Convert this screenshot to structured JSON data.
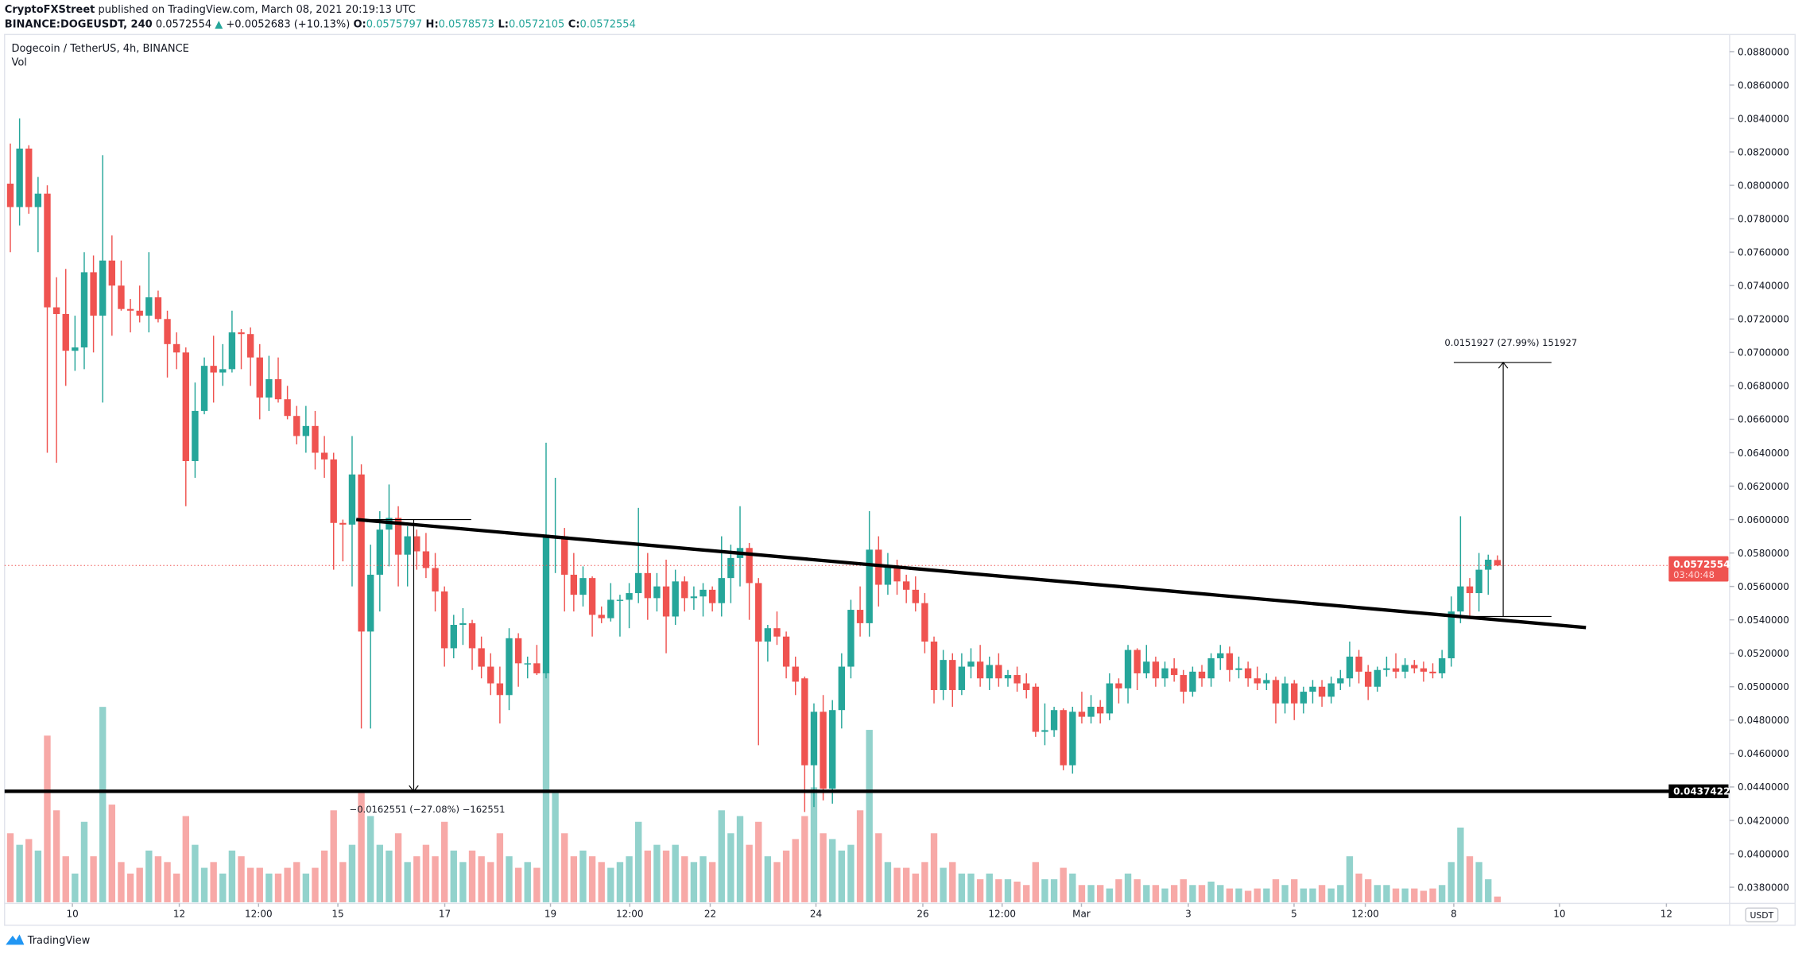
{
  "header": {
    "author": "CryptoFXStreet",
    "published": " published on TradingView.com, March 08, 2021 20:19:13 UTC",
    "symbol": "BINANCE:DOGEUSDT, 240",
    "last": " 0.0572554 ",
    "arrow": "▲",
    "change": " +0.0052683 (+10.13%) ",
    "o_label": "O:",
    "o": "0.0575797",
    "h_label": " H:",
    "h": "0.0578573",
    "l_label": " L:",
    "l": "0.0572105",
    "c_label": " C:",
    "c": "0.0572554"
  },
  "legend": {
    "title": "Dogecoin / TetherUS, 4h, BINANCE",
    "vol": "Vol"
  },
  "currency_badge": "USDT",
  "current_price": {
    "value": "0.0572554",
    "countdown": "03:40:48",
    "price": 0.0572554
  },
  "support": {
    "label": "0.0437422",
    "price": 0.0437422
  },
  "measure_down": {
    "label": "−0.0162551 (−27.08%) −162551",
    "from": 0.06,
    "to": 0.0437422
  },
  "measure_up": {
    "label": "0.0151927 (27.99%) 151927",
    "from": 0.0542,
    "to": 0.0694
  },
  "footer": {
    "brand": "TradingView"
  },
  "colors": {
    "up": "#26a69a",
    "down": "#ef5350",
    "vol_up": "#92d2cc",
    "vol_down": "#f7a9a7",
    "line": "#000000"
  },
  "chart_data": {
    "type": "candlestick",
    "yaxis": {
      "min": 0.038,
      "max": 0.088,
      "step": 0.002,
      "side": "right",
      "ticks": [
        "0.0880000",
        "0.0860000",
        "0.0840000",
        "0.0820000",
        "0.0800000",
        "0.0780000",
        "0.0760000",
        "0.0740000",
        "0.0720000",
        "0.0700000",
        "0.0680000",
        "0.0660000",
        "0.0640000",
        "0.0620000",
        "0.0600000",
        "0.0580000",
        "0.0560000",
        "0.0540000",
        "0.0520000",
        "0.0500000",
        "0.0480000",
        "0.0460000",
        "0.0440000",
        "0.0420000",
        "0.0400000",
        "0.0380000"
      ]
    },
    "xaxis": {
      "ticks": [
        "10",
        "12",
        "12:00",
        "15",
        "17",
        "19",
        "12:00",
        "22",
        "24",
        "26",
        "12:00",
        "Mar",
        "3",
        "5",
        "12:00",
        "8",
        "10",
        "12"
      ]
    },
    "grid": false,
    "candles_ohlc": [
      [
        0.0801,
        0.0825,
        0.076,
        0.0787
      ],
      [
        0.0787,
        0.084,
        0.0776,
        0.0822
      ],
      [
        0.0822,
        0.0824,
        0.0783,
        0.0787
      ],
      [
        0.0787,
        0.0805,
        0.076,
        0.0795
      ],
      [
        0.0795,
        0.08,
        0.064,
        0.0727
      ],
      [
        0.0727,
        0.0745,
        0.0634,
        0.0723
      ],
      [
        0.0723,
        0.075,
        0.068,
        0.0701
      ],
      [
        0.0701,
        0.0722,
        0.0689,
        0.0703
      ],
      [
        0.0703,
        0.076,
        0.069,
        0.0748
      ],
      [
        0.0748,
        0.0758,
        0.07,
        0.0722
      ],
      [
        0.0722,
        0.0818,
        0.067,
        0.0755
      ],
      [
        0.0755,
        0.077,
        0.071,
        0.074
      ],
      [
        0.074,
        0.0755,
        0.0725,
        0.0726
      ],
      [
        0.0726,
        0.0732,
        0.0712,
        0.0725
      ],
      [
        0.0725,
        0.074,
        0.0718,
        0.0722
      ],
      [
        0.0722,
        0.076,
        0.0712,
        0.0733
      ],
      [
        0.0733,
        0.0737,
        0.0718,
        0.072
      ],
      [
        0.072,
        0.0725,
        0.0685,
        0.0705
      ],
      [
        0.0705,
        0.0712,
        0.069,
        0.07
      ],
      [
        0.07,
        0.0703,
        0.0608,
        0.0635
      ],
      [
        0.0635,
        0.0682,
        0.0625,
        0.0665
      ],
      [
        0.0665,
        0.0697,
        0.0663,
        0.0692
      ],
      [
        0.0692,
        0.071,
        0.067,
        0.0688
      ],
      [
        0.0688,
        0.0705,
        0.068,
        0.069
      ],
      [
        0.069,
        0.0725,
        0.0688,
        0.0712
      ],
      [
        0.0712,
        0.0714,
        0.069,
        0.0711
      ],
      [
        0.0711,
        0.0715,
        0.068,
        0.0697
      ],
      [
        0.0697,
        0.0705,
        0.066,
        0.0673
      ],
      [
        0.0673,
        0.0698,
        0.0665,
        0.0684
      ],
      [
        0.0684,
        0.0697,
        0.067,
        0.0672
      ],
      [
        0.0672,
        0.068,
        0.066,
        0.0662
      ],
      [
        0.0662,
        0.0668,
        0.0645,
        0.065
      ],
      [
        0.065,
        0.0668,
        0.064,
        0.0656
      ],
      [
        0.0656,
        0.0665,
        0.063,
        0.064
      ],
      [
        0.064,
        0.065,
        0.0625,
        0.0636
      ],
      [
        0.0636,
        0.064,
        0.057,
        0.0598
      ],
      [
        0.0598,
        0.06,
        0.0575,
        0.0597
      ],
      [
        0.0597,
        0.065,
        0.056,
        0.0627
      ],
      [
        0.0627,
        0.0633,
        0.0475,
        0.0533
      ],
      [
        0.0533,
        0.0585,
        0.0475,
        0.0567
      ],
      [
        0.0567,
        0.0605,
        0.0545,
        0.0594
      ],
      [
        0.0594,
        0.0621,
        0.0572,
        0.0601
      ],
      [
        0.0601,
        0.0608,
        0.056,
        0.0579
      ],
      [
        0.0579,
        0.0596,
        0.056,
        0.059
      ],
      [
        0.059,
        0.0594,
        0.057,
        0.0581
      ],
      [
        0.0581,
        0.0592,
        0.0565,
        0.0571
      ],
      [
        0.0571,
        0.058,
        0.0545,
        0.0557
      ],
      [
        0.0557,
        0.056,
        0.0512,
        0.0523
      ],
      [
        0.0523,
        0.0543,
        0.0517,
        0.0537
      ],
      [
        0.0537,
        0.0547,
        0.0525,
        0.0538
      ],
      [
        0.0538,
        0.054,
        0.051,
        0.0523
      ],
      [
        0.0523,
        0.053,
        0.0505,
        0.0512
      ],
      [
        0.0512,
        0.052,
        0.0495,
        0.0502
      ],
      [
        0.0502,
        0.0512,
        0.0478,
        0.0495
      ],
      [
        0.0495,
        0.0535,
        0.0486,
        0.0529
      ],
      [
        0.0529,
        0.0532,
        0.05,
        0.0514
      ],
      [
        0.0514,
        0.0518,
        0.0505,
        0.0514
      ],
      [
        0.0514,
        0.0525,
        0.0507,
        0.0508
      ],
      [
        0.0508,
        0.0646,
        0.0505,
        0.0591
      ],
      [
        0.0589,
        0.0625,
        0.0568,
        0.059
      ],
      [
        0.059,
        0.0595,
        0.0545,
        0.0567
      ],
      [
        0.0567,
        0.058,
        0.0545,
        0.0555
      ],
      [
        0.0555,
        0.0572,
        0.0548,
        0.0565
      ],
      [
        0.0565,
        0.0566,
        0.053,
        0.0543
      ],
      [
        0.0543,
        0.0548,
        0.0538,
        0.0541
      ],
      [
        0.0541,
        0.0562,
        0.0539,
        0.0552
      ],
      [
        0.0552,
        0.0555,
        0.053,
        0.0552
      ],
      [
        0.0552,
        0.0562,
        0.0535,
        0.0556
      ],
      [
        0.0556,
        0.0607,
        0.055,
        0.0568
      ],
      [
        0.0568,
        0.058,
        0.054,
        0.0553
      ],
      [
        0.0553,
        0.0568,
        0.0545,
        0.056
      ],
      [
        0.056,
        0.0576,
        0.052,
        0.0542
      ],
      [
        0.0542,
        0.057,
        0.0537,
        0.0563
      ],
      [
        0.0563,
        0.0566,
        0.0545,
        0.0553
      ],
      [
        0.0553,
        0.056,
        0.0546,
        0.0554
      ],
      [
        0.0554,
        0.0562,
        0.0542,
        0.0558
      ],
      [
        0.0558,
        0.056,
        0.0545,
        0.055
      ],
      [
        0.055,
        0.059,
        0.0542,
        0.0565
      ],
      [
        0.0565,
        0.0585,
        0.055,
        0.0577
      ],
      [
        0.0577,
        0.0608,
        0.056,
        0.0583
      ],
      [
        0.0583,
        0.0586,
        0.054,
        0.0562
      ],
      [
        0.0562,
        0.0565,
        0.0465,
        0.0527
      ],
      [
        0.0527,
        0.0537,
        0.0515,
        0.0535
      ],
      [
        0.0535,
        0.0545,
        0.0525,
        0.053
      ],
      [
        0.053,
        0.0533,
        0.0505,
        0.0512
      ],
      [
        0.0512,
        0.0518,
        0.0495,
        0.0503
      ],
      [
        0.0505,
        0.0506,
        0.0425,
        0.0453
      ],
      [
        0.0453,
        0.049,
        0.0428,
        0.0485
      ],
      [
        0.0485,
        0.0495,
        0.0432,
        0.0439
      ],
      [
        0.0439,
        0.0492,
        0.043,
        0.0486
      ],
      [
        0.0486,
        0.052,
        0.0475,
        0.0512
      ],
      [
        0.0512,
        0.0552,
        0.0505,
        0.0546
      ],
      [
        0.0546,
        0.056,
        0.053,
        0.0538
      ],
      [
        0.0538,
        0.0605,
        0.053,
        0.0582
      ],
      [
        0.0582,
        0.059,
        0.0548,
        0.0561
      ],
      [
        0.0561,
        0.058,
        0.0555,
        0.0572
      ],
      [
        0.0572,
        0.0576,
        0.0555,
        0.0563
      ],
      [
        0.0563,
        0.0567,
        0.055,
        0.0558
      ],
      [
        0.0558,
        0.0566,
        0.0545,
        0.055
      ],
      [
        0.055,
        0.0556,
        0.052,
        0.0527
      ],
      [
        0.0527,
        0.053,
        0.049,
        0.0498
      ],
      [
        0.0498,
        0.0522,
        0.0492,
        0.0516
      ],
      [
        0.0516,
        0.052,
        0.0488,
        0.0498
      ],
      [
        0.0498,
        0.052,
        0.0495,
        0.0512
      ],
      [
        0.0512,
        0.0523,
        0.0505,
        0.0515
      ],
      [
        0.0515,
        0.0525,
        0.05,
        0.0505
      ],
      [
        0.0505,
        0.0518,
        0.0498,
        0.0513
      ],
      [
        0.0513,
        0.052,
        0.05,
        0.0505
      ],
      [
        0.0505,
        0.051,
        0.05,
        0.0507
      ],
      [
        0.0507,
        0.0512,
        0.0497,
        0.0502
      ],
      [
        0.0502,
        0.0508,
        0.0493,
        0.0498
      ],
      [
        0.05,
        0.0502,
        0.047,
        0.0473
      ],
      [
        0.0473,
        0.049,
        0.0465,
        0.0474
      ],
      [
        0.0474,
        0.0488,
        0.047,
        0.0486
      ],
      [
        0.0486,
        0.0487,
        0.045,
        0.0453
      ],
      [
        0.0453,
        0.0488,
        0.0448,
        0.0485
      ],
      [
        0.0485,
        0.0497,
        0.0478,
        0.0482
      ],
      [
        0.0482,
        0.0495,
        0.0478,
        0.0488
      ],
      [
        0.0488,
        0.0492,
        0.0478,
        0.0484
      ],
      [
        0.0484,
        0.0508,
        0.048,
        0.0502
      ],
      [
        0.0502,
        0.0505,
        0.049,
        0.0499
      ],
      [
        0.0499,
        0.0525,
        0.049,
        0.0522
      ],
      [
        0.0522,
        0.0523,
        0.0498,
        0.0508
      ],
      [
        0.0508,
        0.0525,
        0.0505,
        0.0515
      ],
      [
        0.0515,
        0.0518,
        0.05,
        0.0505
      ],
      [
        0.0505,
        0.0515,
        0.05,
        0.0511
      ],
      [
        0.0511,
        0.0517,
        0.0503,
        0.0507
      ],
      [
        0.0507,
        0.051,
        0.049,
        0.0497
      ],
      [
        0.0497,
        0.0512,
        0.0494,
        0.0509
      ],
      [
        0.0509,
        0.0513,
        0.05,
        0.0505
      ],
      [
        0.0505,
        0.052,
        0.05,
        0.0517
      ],
      [
        0.0517,
        0.0525,
        0.051,
        0.052
      ],
      [
        0.052,
        0.0524,
        0.0503,
        0.051
      ],
      [
        0.051,
        0.0518,
        0.0505,
        0.0511
      ],
      [
        0.0511,
        0.0515,
        0.05,
        0.0505
      ],
      [
        0.0505,
        0.0512,
        0.0498,
        0.0502
      ],
      [
        0.0502,
        0.0508,
        0.0498,
        0.0504
      ],
      [
        0.0504,
        0.0506,
        0.0478,
        0.049
      ],
      [
        0.049,
        0.0506,
        0.0484,
        0.0502
      ],
      [
        0.0502,
        0.0504,
        0.048,
        0.049
      ],
      [
        0.049,
        0.05,
        0.0484,
        0.0497
      ],
      [
        0.0497,
        0.0504,
        0.049,
        0.05
      ],
      [
        0.05,
        0.0504,
        0.0488,
        0.0494
      ],
      [
        0.0494,
        0.0506,
        0.049,
        0.0502
      ],
      [
        0.0502,
        0.051,
        0.0498,
        0.0505
      ],
      [
        0.0505,
        0.0527,
        0.05,
        0.0518
      ],
      [
        0.0518,
        0.0522,
        0.0502,
        0.0509
      ],
      [
        0.0509,
        0.0513,
        0.0492,
        0.05
      ],
      [
        0.05,
        0.0512,
        0.0497,
        0.051
      ],
      [
        0.051,
        0.0518,
        0.0506,
        0.0511
      ],
      [
        0.0511,
        0.052,
        0.0505,
        0.0509
      ],
      [
        0.0509,
        0.0517,
        0.0505,
        0.0513
      ],
      [
        0.0513,
        0.0516,
        0.0508,
        0.0511
      ],
      [
        0.0511,
        0.0515,
        0.0503,
        0.0509
      ],
      [
        0.0509,
        0.0514,
        0.0505,
        0.0508
      ],
      [
        0.0508,
        0.0522,
        0.0505,
        0.0517
      ],
      [
        0.0517,
        0.0554,
        0.0512,
        0.0545
      ],
      [
        0.0545,
        0.0602,
        0.0538,
        0.056
      ],
      [
        0.056,
        0.0565,
        0.0542,
        0.0556
      ],
      [
        0.0556,
        0.058,
        0.0545,
        0.057
      ],
      [
        0.057,
        0.0579,
        0.0555,
        0.0576
      ],
      [
        0.0575797,
        0.0578573,
        0.0572105,
        0.0572554
      ]
    ],
    "volume_relative": [
      60,
      50,
      55,
      45,
      145,
      80,
      40,
      25,
      70,
      40,
      170,
      85,
      35,
      25,
      30,
      45,
      40,
      35,
      25,
      75,
      50,
      30,
      35,
      25,
      45,
      40,
      30,
      30,
      25,
      25,
      30,
      35,
      25,
      30,
      45,
      80,
      35,
      50,
      95,
      75,
      50,
      45,
      60,
      35,
      40,
      50,
      40,
      70,
      45,
      35,
      45,
      40,
      35,
      60,
      40,
      30,
      35,
      30,
      200,
      95,
      60,
      40,
      45,
      40,
      35,
      30,
      35,
      40,
      70,
      45,
      50,
      45,
      50,
      40,
      35,
      40,
      35,
      80,
      60,
      75,
      50,
      70,
      40,
      35,
      45,
      55,
      75,
      100,
      60,
      55,
      45,
      50,
      80,
      150,
      60,
      35,
      30,
      30,
      25,
      35,
      60,
      30,
      35,
      25,
      25,
      20,
      25,
      20,
      20,
      18,
      15,
      35,
      20,
      20,
      30,
      25,
      15,
      15,
      15,
      12,
      20,
      25,
      20,
      15,
      15,
      12,
      15,
      20,
      15,
      15,
      18,
      15,
      12,
      12,
      10,
      12,
      12,
      20,
      15,
      20,
      12,
      12,
      15,
      12,
      15,
      40,
      25,
      20,
      15,
      15,
      12,
      12,
      12,
      10,
      12,
      15,
      35,
      65,
      40,
      35,
      20,
      5
    ]
  }
}
